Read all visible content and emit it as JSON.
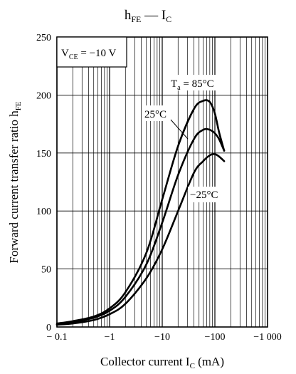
{
  "chart_data": {
    "type": "line",
    "title": {
      "main": "h",
      "sub": "FE",
      "dash": " — ",
      "main2": "I",
      "sub2": "C"
    },
    "xlabel": {
      "main": "Collector current  I",
      "sub": "C",
      "tail": "  (mA)"
    },
    "ylabel": {
      "main": "Forward current transfer ratio  h",
      "sub": "FE"
    },
    "x_scale": "log",
    "x_range": [
      -0.1,
      -1000
    ],
    "y_range": [
      0,
      250
    ],
    "x_ticks": [
      {
        "value": -0.1,
        "label": "− 0.1"
      },
      {
        "value": -1,
        "label": "−1"
      },
      {
        "value": -10,
        "label": "−10"
      },
      {
        "value": -100,
        "label": "−100"
      },
      {
        "value": -1000,
        "label": "−1 000"
      }
    ],
    "y_ticks": [
      {
        "value": 0,
        "label": "0"
      },
      {
        "value": 50,
        "label": "50"
      },
      {
        "value": 100,
        "label": "100"
      },
      {
        "value": 150,
        "label": "150"
      },
      {
        "value": 200,
        "label": "200"
      },
      {
        "value": 250,
        "label": "250"
      }
    ],
    "grid": true,
    "condition": {
      "main": "V",
      "sub": "CE",
      "tail": " = −10 V"
    },
    "series": [
      {
        "name": "T_a = 85°C",
        "x": [
          -0.1,
          -0.2,
          -0.5,
          -1,
          -2,
          -5,
          -10,
          -20,
          -40,
          -60,
          -80,
          -100,
          -120,
          -150
        ],
        "y": [
          3,
          5,
          9,
          16,
          30,
          64,
          110,
          156,
          188,
          195,
          194,
          184,
          168,
          152
        ]
      },
      {
        "name": "25°C",
        "x": [
          -0.1,
          -0.2,
          -0.5,
          -1,
          -2,
          -5,
          -10,
          -20,
          -40,
          -60,
          -80,
          -100,
          -120,
          -150
        ],
        "y": [
          2,
          4,
          8,
          14,
          26,
          54,
          90,
          131,
          162,
          170,
          170,
          167,
          162,
          152
        ]
      },
      {
        "name": "−25°C",
        "x": [
          -0.1,
          -0.2,
          -0.5,
          -1,
          -2,
          -5,
          -10,
          -20,
          -40,
          -60,
          -80,
          -100,
          -120,
          -150
        ],
        "y": [
          2,
          3,
          6,
          11,
          20,
          42,
          67,
          100,
          133,
          143,
          148,
          149,
          147,
          143
        ]
      }
    ],
    "annotations": [
      {
        "id": "ta85",
        "main": "T",
        "sub": "a",
        "tail": " = 85°C"
      },
      {
        "id": "t25",
        "main": "25°C"
      },
      {
        "id": "tm25",
        "main": "−25°C"
      }
    ]
  }
}
